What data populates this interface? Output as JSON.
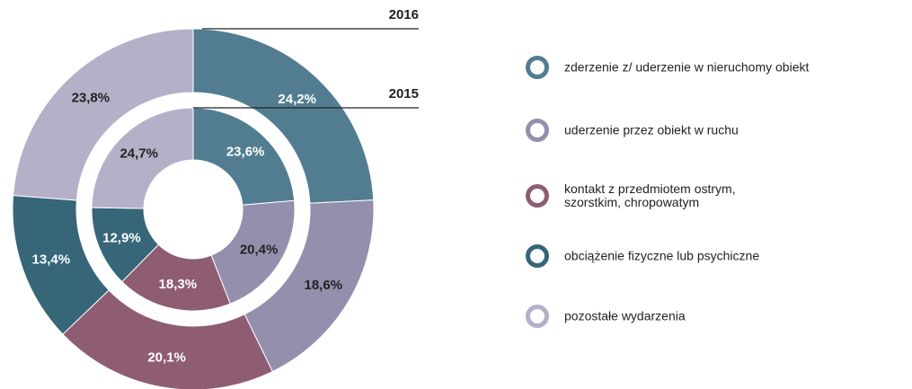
{
  "chart_data": {
    "type": "donut",
    "categories": [
      "zderzenie z/ uderzenie w nieruchomy obiekt",
      "uderzenie przez obiekt w ruchu",
      "kontakt z przedmiotem ostrym,\nszorstkim, chropowatym",
      "obciążenie fizyczne lub psychiczne",
      "pozostałe wydarzenia"
    ],
    "colors": [
      "#527d91",
      "#948fad",
      "#8e5d72",
      "#366678",
      "#b3b0c8"
    ],
    "series": [
      {
        "name": "2016",
        "values": [
          24.2,
          18.6,
          20.1,
          13.4,
          23.8
        ],
        "value_labels": [
          "24,2%",
          "18,6%",
          "20,1%",
          "13,4%",
          "23,8%"
        ]
      },
      {
        "name": "2015",
        "values": [
          23.6,
          20.4,
          18.3,
          12.9,
          24.7
        ],
        "value_labels": [
          "23,6%",
          "20,4%",
          "18,3%",
          "12,9%",
          "24,7%"
        ]
      }
    ]
  }
}
